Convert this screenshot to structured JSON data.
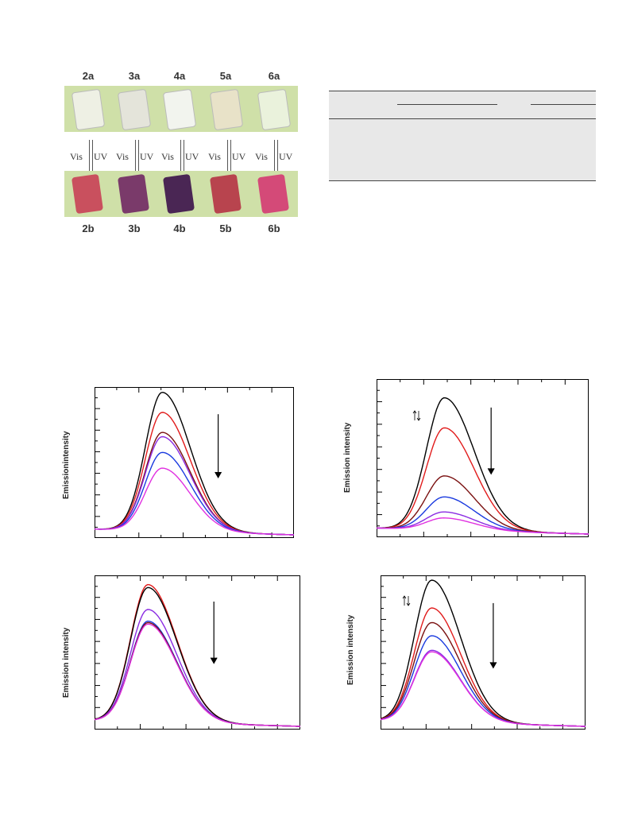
{
  "crystals": {
    "top_labels": [
      "2a",
      "3a",
      "4a",
      "5a",
      "6a"
    ],
    "bottom_labels": [
      "2b",
      "3b",
      "4b",
      "5b",
      "6b"
    ],
    "vis_label": "Vis",
    "uv_label": "UV",
    "top_colors": [
      "#eef0e4",
      "#e4e4da",
      "#f2f4ee",
      "#e8e2c8",
      "#eaf2dc"
    ],
    "bottom_colors": [
      "#c9505e",
      "#7a3a6a",
      "#4a2654",
      "#b8444e",
      "#d44a78"
    ],
    "background_color": "#cfe0a8"
  },
  "charts": [
    {
      "ylabel": "Emissionintensity"
    },
    {
      "ylabel": "Emission intensity"
    },
    {
      "ylabel": "Emission intensity"
    },
    {
      "ylabel": "Emission intensity"
    }
  ],
  "chart_data": [
    {
      "type": "line",
      "series_colors": [
        "#000000",
        "#e11b1b",
        "#7a1010",
        "#8a2be2",
        "#1a3adf",
        "#e030e0"
      ],
      "peak_values": [
        0.97,
        0.83,
        0.69,
        0.66,
        0.55,
        0.44
      ],
      "peak_x": 0.34,
      "arrow": "down"
    },
    {
      "type": "line",
      "series_colors": [
        "#000000",
        "#e11b1b",
        "#7a1010",
        "#1a3adf",
        "#8a2be2",
        "#e030e0"
      ],
      "peak_values": [
        0.88,
        0.68,
        0.36,
        0.22,
        0.12,
        0.08
      ],
      "peak_x": 0.32,
      "arrow": "down"
    },
    {
      "type": "line",
      "series_colors": [
        "#e11b1b",
        "#000000",
        "#8a2be2",
        "#1a3adf",
        "#7a1010",
        "#e030e0"
      ],
      "peak_values": [
        0.94,
        0.92,
        0.77,
        0.69,
        0.68,
        0.67
      ],
      "peak_x": 0.26,
      "arrow": "down"
    },
    {
      "type": "line",
      "series_colors": [
        "#000000",
        "#e11b1b",
        "#7a1010",
        "#1a3adf",
        "#8a2be2",
        "#e030e0"
      ],
      "peak_values": [
        0.97,
        0.78,
        0.68,
        0.59,
        0.49,
        0.48
      ],
      "peak_x": 0.25,
      "arrow": "down"
    }
  ]
}
